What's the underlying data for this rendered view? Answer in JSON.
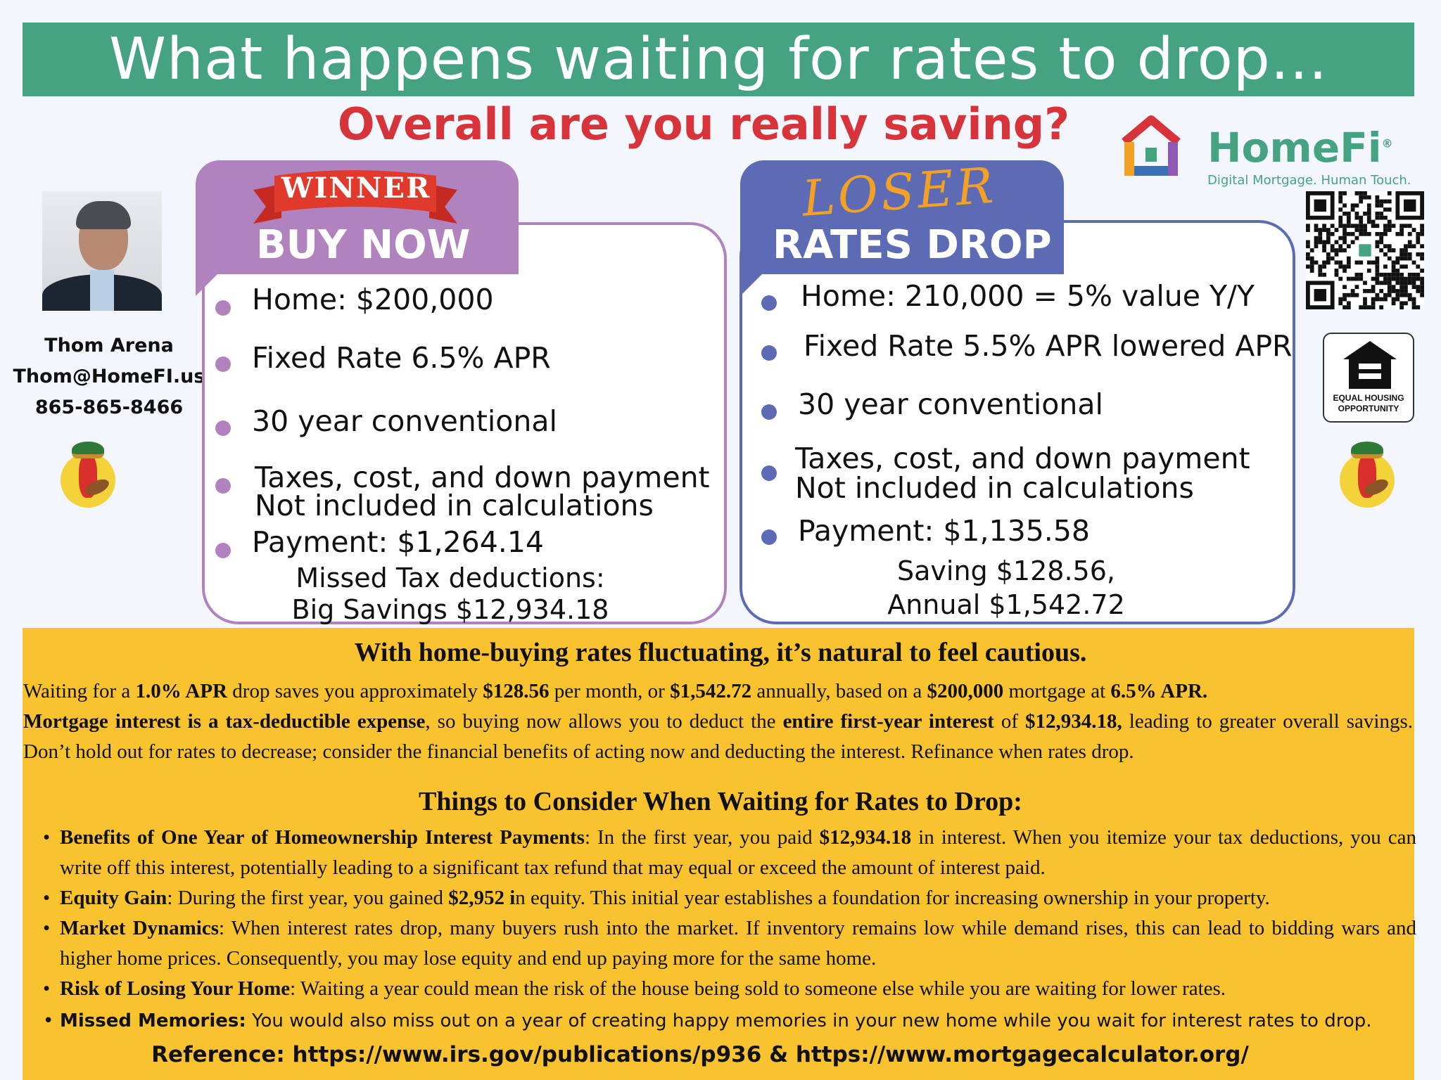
{
  "title": "What happens waiting for rates to drop...",
  "subtitle": "Overall are you really saving?",
  "agent": {
    "name": "Thom Arena",
    "email": "Thom@HomeFI.us",
    "phone": "865-865-8466"
  },
  "brand": {
    "name": "HomeFi",
    "registered": "®",
    "tagline": "Digital Mortgage. Human Touch.",
    "ehl_text": "EQUAL HOUSING OPPORTUNITY"
  },
  "buy_now": {
    "badge": "WINNER",
    "label": "BUY NOW",
    "items": [
      "Home: $200,000",
      "Fixed Rate 6.5% APR",
      "30 year conventional",
      "Taxes, cost, and down payment",
      "Payment: $1,264.14"
    ],
    "item4_line2": "Not included in calculations",
    "note_line1": "Missed Tax deductions:",
    "note_line2": "Big Savings $12,934.18"
  },
  "rates_drop": {
    "badge": "LOSER",
    "label": "RATES DROP",
    "items": [
      "Home: 210,000 = 5% value Y/Y",
      "Fixed Rate 5.5% APR lowered APR",
      "30 year conventional",
      "Taxes, cost, and down payment",
      "Payment: $1,135.58"
    ],
    "item4_line2": "Not included in calculations",
    "note_line1": "Saving $128.56,",
    "note_line2": "Annual $1,542.72"
  },
  "info": {
    "heading": "With home-buying rates fluctuating, it’s natural to feel cautious.",
    "p1": [
      "Waiting for a ",
      "1.0% APR",
      " drop saves you approximately ",
      "$128.56",
      " per month, or ",
      "$1,542.72",
      " annually, based on a ",
      "$200,000",
      " mortgage at ",
      "6.5% APR."
    ],
    "p2": [
      "Mortgage interest is a tax-deductible expense",
      ", so buying now allows you to deduct the ",
      "entire first-year interest",
      " of ",
      "$12,934.18,",
      " leading to greater overall savings. Don’t hold out for rates to decrease; consider the financial benefits of acting now and deducting the interest. Refinance when rates drop."
    ],
    "consider_heading": "Things to Consider When Waiting for Rates to Drop:",
    "bullets": [
      {
        "title": "Benefits of One Year of Homeownership Interest Payments",
        "pre": ": In the first year, you paid ",
        "bold": "$12,934.18",
        "post": " in interest. When you itemize your tax deductions, you can write off this interest, potentially leading to a significant tax refund that may equal or exceed the amount of interest paid."
      },
      {
        "title": "Equity Gain",
        "pre": ": During the first year, you gained ",
        "bold": "$2,952 i",
        "post": "n equity. This initial year establishes a foundation for increasing ownership in your property."
      },
      {
        "title": "Market Dynamics",
        "pre": ": When interest rates drop, many buyers rush into the market. If inventory remains low while demand rises, this can lead to bidding wars and higher home prices. Consequently, you may lose equity and end up paying more for the same home.",
        "bold": "",
        "post": ""
      },
      {
        "title": "Risk of Losing Your Home",
        "pre": ": Waiting a year could mean the risk of the house being sold to someone else while you are waiting for lower rates.",
        "bold": "",
        "post": ""
      },
      {
        "title": "Missed Memories:",
        "pre": " You would also miss out on a year of creating happy memories in your new home while you wait for interest rates to drop.",
        "bold": "",
        "post": ""
      }
    ],
    "reference": "Reference: https://www.irs.gov/publications/p936 &  https://www.mortgagecalculator.org/"
  },
  "colors": {
    "title_bg": "#46a382",
    "subtitle": "#d6333b",
    "buy_now": "#b083bf",
    "rates_drop": "#5d6bb5",
    "yellow": "#f9c22f"
  },
  "icons": [
    "agent-photo",
    "pepper-mascot-icon",
    "homefi-logo-icon",
    "qr-code",
    "equal-housing-icon"
  ]
}
